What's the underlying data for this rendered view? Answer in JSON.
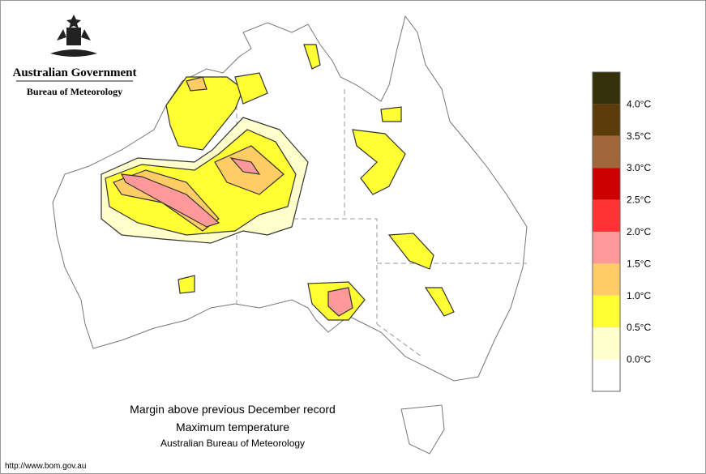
{
  "header": {
    "org": "Australian Government",
    "agency": "Bureau of Meteorology"
  },
  "caption": {
    "title": "Margin above previous December record",
    "subtitle": "Maximum temperature",
    "source": "Australian Bureau of Meteorology"
  },
  "url": "http://www.bom.gov.au",
  "legend": {
    "colors": [
      "#33300a",
      "#5c3c0a",
      "#a0663a",
      "#cc0000",
      "#ff3333",
      "#ff9999",
      "#ffcc66",
      "#ffff33",
      "#ffffcc",
      "#ffffff"
    ],
    "labels": [
      "4.0°C",
      "3.5°C",
      "3.0°C",
      "2.5°C",
      "2.0°C",
      "1.5°C",
      "1.0°C",
      "0.5°C",
      "0.0°C"
    ]
  }
}
